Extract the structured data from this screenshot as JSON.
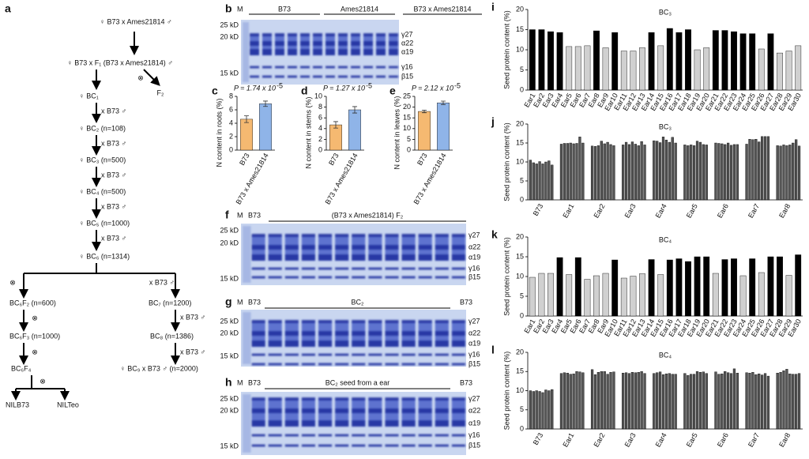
{
  "diagram": {
    "panel": "a",
    "nodes": [
      "♀ B73 x Ames21814 ♂",
      "♀ B73 x F₁ (B73 x Ames21814) ♂",
      "⊗",
      "F₂",
      "♀ BC₁",
      "x B73 ♂",
      "♀ BC₂ (n=108)",
      "x B73 ♂",
      "♀ BC₃ (n=500)",
      "x B73 ♂",
      "♀ BC₄ (n=500)",
      "x B73 ♂",
      "♀ BC₅ (n=1000)",
      "x B73 ♂",
      "♀ BC₆ (n=1314)",
      "⊗",
      "x B73 ♂",
      "BC₆F₂ (n=600)",
      "BC₇ (n=1200)",
      "⊗",
      "x B73 ♂",
      "BC₆F₃ (n=1000)",
      "BC₈ (n=1386)",
      "⊗",
      "x B73 ♂",
      "BC₆F₄",
      "♀ BC₉ x B73 ♂ (n=2000)",
      "⊗",
      "NILB73",
      "NILTeo"
    ]
  },
  "gels": [
    {
      "panel": "b",
      "marker_lane": "M",
      "lanes": [
        "B73",
        "Ames21814",
        "B73 x Ames21814"
      ],
      "markers": [
        "25 kD",
        "20 kD",
        "15 kD"
      ],
      "bands": [
        "γ27",
        "α22",
        "α19",
        "γ16",
        "β15"
      ]
    },
    {
      "panel": "f",
      "marker_lane": "M",
      "lanes": [
        "B73",
        "(B73 x Ames21814) F₂"
      ],
      "markers": [
        "25 kD",
        "20 kD",
        "15 kD"
      ],
      "bands": [
        "γ27",
        "α22",
        "α19",
        "γ16",
        "β15"
      ]
    },
    {
      "panel": "g",
      "marker_lane": "M",
      "lanes": [
        "B73",
        "BC₂",
        "B73"
      ],
      "markers": [
        "25 kD",
        "20 kD",
        "15 kD"
      ],
      "bands": [
        "γ27",
        "α22",
        "α19",
        "γ16",
        "β15"
      ]
    },
    {
      "panel": "h",
      "marker_lane": "M",
      "lanes": [
        "B73",
        "BC₂ seed from a ear",
        "B73"
      ],
      "markers": [
        "25 kD",
        "20 kD",
        "15 kD"
      ],
      "bands": [
        "γ27",
        "α22",
        "α19",
        "γ16",
        "β15"
      ]
    }
  ],
  "chart_data": [
    {
      "panel": "c",
      "type": "bar",
      "p_label": "P = 1.74 x 10",
      "p_exponent": "-5",
      "ylabel": "N content in roots (%)",
      "categories": [
        "B73",
        "B73 x Ames21814"
      ],
      "values": [
        4.6,
        6.9
      ],
      "errors": [
        0.5,
        0.4
      ],
      "colors": [
        "#f5b971",
        "#8fb4e8"
      ],
      "ylim": [
        0,
        8
      ],
      "yticks": [
        0,
        2,
        4,
        6,
        8
      ]
    },
    {
      "panel": "d",
      "type": "bar",
      "p_label": "P = 1.27 x 10",
      "p_exponent": "-5",
      "ylabel": "N content in stems (%)",
      "categories": [
        "B73",
        "B73 x Ames21814"
      ],
      "values": [
        4.7,
        7.5
      ],
      "errors": [
        0.6,
        0.6
      ],
      "colors": [
        "#f5b971",
        "#8fb4e8"
      ],
      "ylim": [
        0,
        10
      ],
      "yticks": [
        0,
        2,
        4,
        6,
        8,
        10
      ]
    },
    {
      "panel": "e",
      "type": "bar",
      "p_label": "P = 2.12 x 10",
      "p_exponent": "-5",
      "ylabel": "N content in leaves (%)",
      "categories": [
        "B73",
        "B73 x Ames21814"
      ],
      "values": [
        18,
        22
      ],
      "errors": [
        0.6,
        0.8
      ],
      "colors": [
        "#f5b971",
        "#8fb4e8"
      ],
      "ylim": [
        0,
        25
      ],
      "yticks": [
        0,
        5,
        10,
        15,
        20,
        25
      ]
    },
    {
      "panel": "i",
      "type": "bar",
      "title": "BC₃",
      "ylabel": "Seed protein content (%)",
      "categories": [
        "Ear1",
        "Ear2",
        "Ear3",
        "Ear4",
        "Ear5",
        "Ear6",
        "Ear7",
        "Ear8",
        "Ear9",
        "Ear10",
        "Ear11",
        "Ear12",
        "Ear13",
        "Ear14",
        "Ear15",
        "Ear16",
        "Ear17",
        "Ear18",
        "Ear19",
        "Ear20",
        "Ear21",
        "Ear22",
        "Ear23",
        "Ear24",
        "Ear25",
        "Ear26",
        "Ear27",
        "Ear28",
        "Ear29",
        "Ear30"
      ],
      "values": [
        15,
        15,
        14.5,
        14.3,
        10.8,
        10.8,
        11,
        14.7,
        10.5,
        14.3,
        9.7,
        9.7,
        10.5,
        14.3,
        11,
        15.3,
        14.3,
        15,
        10,
        10.5,
        14.8,
        14.8,
        14.5,
        14,
        14,
        10.2,
        14,
        9.2,
        9.7,
        11
      ],
      "colors": [
        "#000",
        "#000",
        "#000",
        "#000",
        "#d0d0d0",
        "#d0d0d0",
        "#d0d0d0",
        "#000",
        "#d0d0d0",
        "#000",
        "#d0d0d0",
        "#d0d0d0",
        "#d0d0d0",
        "#000",
        "#d0d0d0",
        "#000",
        "#000",
        "#000",
        "#d0d0d0",
        "#d0d0d0",
        "#000",
        "#000",
        "#000",
        "#000",
        "#000",
        "#d0d0d0",
        "#000",
        "#d0d0d0",
        "#d0d0d0",
        "#d0d0d0"
      ],
      "ylim": [
        0,
        20
      ],
      "yticks": [
        0,
        5,
        10,
        15,
        20
      ]
    },
    {
      "panel": "j",
      "type": "bar",
      "title": "BC₃",
      "ylabel": "Seed protein content (%)",
      "categories": [
        "B73",
        "Ear1",
        "Ear2",
        "Ear3",
        "Ear4",
        "Ear5",
        "Ear6",
        "Ear7",
        "Ear8"
      ],
      "values": [
        [
          10.5,
          9.8,
          9.5,
          10.1,
          9.5,
          10.0,
          10.3,
          9.2
        ],
        [
          14.7,
          14.9,
          14.9,
          15.0,
          14.8,
          14.9,
          16.6,
          15.0
        ],
        [
          14.2,
          14.1,
          14.3,
          15.5,
          14.8,
          15.2,
          14.6,
          14.3
        ],
        [
          14.5,
          15.2,
          14.6,
          15.3,
          14.7,
          14.3,
          15.4,
          14.5
        ],
        [
          15.6,
          15.5,
          15.1,
          16.6,
          15.8,
          15.2,
          16.5,
          15.0
        ],
        [
          14.5,
          14.3,
          14.5,
          14.3,
          15.5,
          15.2,
          14.6,
          14.5
        ],
        [
          15.0,
          14.9,
          14.8,
          14.6,
          15.0,
          14.4,
          14.6,
          14.6
        ],
        [
          14.7,
          16.0,
          15.9,
          16.0,
          15.3,
          16.7,
          16.7,
          16.7
        ],
        [
          14.3,
          14.2,
          14.5,
          14.3,
          14.5,
          15.0,
          15.9,
          14.2
        ]
      ],
      "color": "#555",
      "ylim": [
        0,
        20
      ],
      "yticks": [
        0,
        5,
        10,
        15,
        20
      ]
    },
    {
      "panel": "k",
      "type": "bar",
      "title": "BC₄",
      "ylabel": "Seed protein content (%)",
      "categories": [
        "Ear1",
        "Ear2",
        "Ear3",
        "Ear4",
        "Ear5",
        "Ear6",
        "Ear7",
        "Ear8",
        "Ear9",
        "Ear10",
        "Ear11",
        "Ear12",
        "Ear13",
        "Ear14",
        "Ear15",
        "Ear16",
        "Ear17",
        "Ear18",
        "Ear19",
        "Ear20",
        "Ear21",
        "Ear22",
        "Ear23",
        "Ear24",
        "Ear25",
        "Ear26",
        "Ear27",
        "Ear28",
        "Ear29",
        "Ear30"
      ],
      "values": [
        9.8,
        10.8,
        10.8,
        14.8,
        10.5,
        14.8,
        9.3,
        10.2,
        10.8,
        14.2,
        9.6,
        10.1,
        10.7,
        14.3,
        10.5,
        14.2,
        14.5,
        13.8,
        15,
        15,
        10.8,
        14.3,
        14.5,
        10.2,
        14.5,
        11,
        15,
        15,
        10.3,
        15.5
      ],
      "colors": [
        "#d0d0d0",
        "#d0d0d0",
        "#d0d0d0",
        "#000",
        "#d0d0d0",
        "#000",
        "#d0d0d0",
        "#d0d0d0",
        "#d0d0d0",
        "#000",
        "#d0d0d0",
        "#d0d0d0",
        "#d0d0d0",
        "#000",
        "#d0d0d0",
        "#000",
        "#000",
        "#000",
        "#000",
        "#000",
        "#d0d0d0",
        "#000",
        "#000",
        "#d0d0d0",
        "#000",
        "#d0d0d0",
        "#000",
        "#000",
        "#d0d0d0",
        "#000"
      ],
      "ylim": [
        0,
        20
      ],
      "yticks": [
        0,
        5,
        10,
        15,
        20
      ]
    },
    {
      "panel": "l",
      "type": "bar",
      "title": "BC₄",
      "ylabel": "Seed protein content (%)",
      "categories": [
        "B73",
        "Ear1",
        "Ear2",
        "Ear3",
        "Ear4",
        "Ear5",
        "Ear6",
        "Ear7",
        "Ear8"
      ],
      "values": [
        [
          10.0,
          9.8,
          10.0,
          9.8,
          9.5,
          10.2,
          10.0,
          10.3
        ],
        [
          14.5,
          14.7,
          14.6,
          14.3,
          14.4,
          15.0,
          14.9,
          14.7
        ],
        [
          15.5,
          14.2,
          14.8,
          15.0,
          15.0,
          14.3,
          14.8,
          14.9
        ],
        [
          14.6,
          14.7,
          14.5,
          14.8,
          14.7,
          14.8,
          15.0,
          14.5
        ],
        [
          14.5,
          14.7,
          14.9,
          14.2,
          14.4,
          14.5,
          14.3,
          14.3
        ],
        [
          14.5,
          14.0,
          14.3,
          14.3,
          15.0,
          14.8,
          14.9,
          14.5
        ],
        [
          14.9,
          14.3,
          14.4,
          15.0,
          14.7,
          14.5,
          15.7,
          14.6
        ],
        [
          14.7,
          14.6,
          14.8,
          14.2,
          14.4,
          14.1,
          14.5,
          13.8
        ],
        [
          14.6,
          14.8,
          15.2,
          15.6,
          14.4,
          14.3,
          14.3,
          14.5
        ]
      ],
      "color": "#555",
      "ylim": [
        0,
        20
      ],
      "yticks": [
        0,
        5,
        10,
        15,
        20
      ]
    }
  ]
}
